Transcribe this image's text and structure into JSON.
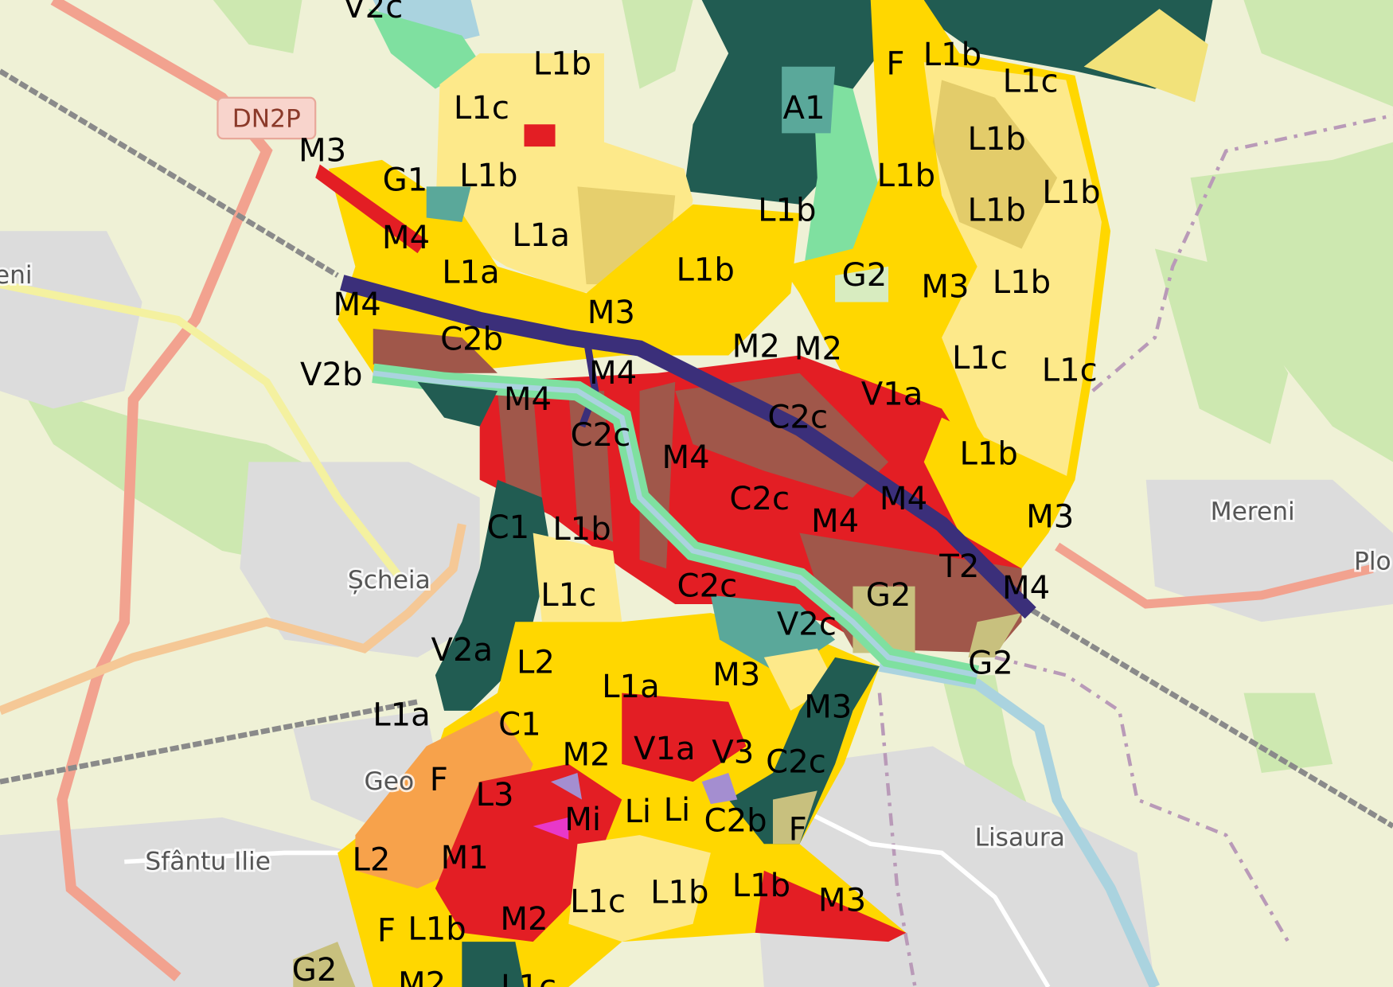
{
  "road_shield": "DN2P",
  "place_names": [
    "Șcheia",
    "Mereni",
    "Plo",
    "Geo",
    "Sfântu Ilie",
    "Lisaura",
    "eni"
  ],
  "zone_labels": [
    "V2c",
    "L1b",
    "L1c",
    "M3",
    "G1",
    "L1b",
    "M4",
    "L1a",
    "L1a",
    "M4",
    "C2b",
    "V2b",
    "M4",
    "C2c",
    "M4",
    "M3",
    "L1b",
    "L1b",
    "F",
    "L1b",
    "L1c",
    "A1",
    "L1b",
    "L1b",
    "L1b",
    "L1b",
    "G2",
    "M3",
    "L1b",
    "M2",
    "M2",
    "L1c",
    "L1c",
    "V1a",
    "C2c",
    "M4",
    "L1b",
    "C2c",
    "M4",
    "M4",
    "M3",
    "T2",
    "M4",
    "G2",
    "C1",
    "L1b",
    "L1c",
    "C2c",
    "V2c",
    "G2",
    "V2a",
    "L2",
    "L1a",
    "M3",
    "M3",
    "L1a",
    "C1",
    "M2",
    "V1a",
    "V3",
    "C2c",
    "F",
    "L3",
    "Mi",
    "Li",
    "Li",
    "C2b",
    "F",
    "L2",
    "M1",
    "L1c",
    "L1b",
    "L1b",
    "M3",
    "F",
    "L1b",
    "M2",
    "G2",
    "M2",
    "L1c"
  ],
  "colors": {
    "background": "#eff1d6",
    "forest_dark_green": "#215c52",
    "residential_yellow": "#ffd700",
    "residential_light_yellow": "#fde98a",
    "mixed_red": "#e31e24",
    "industrial_brown": "#a0574a",
    "transport_navy": "#3b2f7a",
    "orange_zone": "#f7a24b",
    "teal_zone": "#5aa89a",
    "green_zone": "#7fe0a0",
    "khaki_zone": "#c8c07e"
  }
}
